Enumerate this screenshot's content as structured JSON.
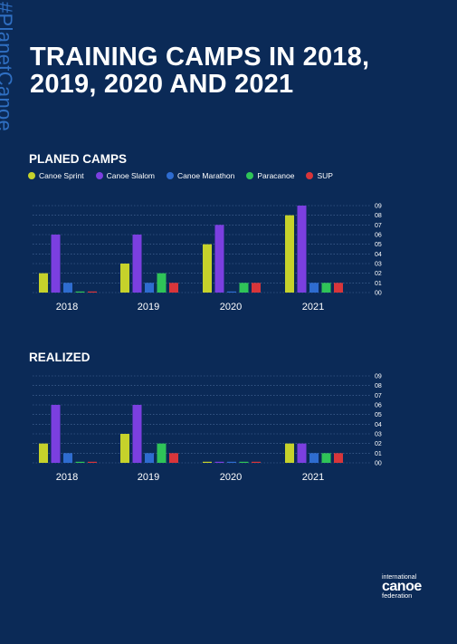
{
  "watermark": "#PlanetCanoe",
  "title": "TRAINING CAMPS IN 2018, 2019, 2020 AND 2021",
  "colors": {
    "background": "#0b2a57",
    "Canoe Sprint": "#c6d22b",
    "Canoe Slalom": "#7b3fe0",
    "Canoe Marathon": "#2e6cd0",
    "Paracanoe": "#2fc458",
    "SUP": "#d8353a"
  },
  "legend": [
    {
      "label": "Canoe Sprint",
      "color": "#c6d22b"
    },
    {
      "label": "Canoe Slalom",
      "color": "#7b3fe0"
    },
    {
      "label": "Canoe Marathon",
      "color": "#2e6cd0"
    },
    {
      "label": "Paracanoe",
      "color": "#2fc458"
    },
    {
      "label": "SUP",
      "color": "#d8353a"
    }
  ],
  "chart_data": [
    {
      "type": "bar",
      "title": "PLANED CAMPS",
      "categories": [
        "2018",
        "2019",
        "2020",
        "2021"
      ],
      "yticks": [
        "00",
        "01",
        "02",
        "03",
        "04",
        "05",
        "06",
        "07",
        "08",
        "09"
      ],
      "ylim": [
        0,
        9
      ],
      "grid": true,
      "series": [
        {
          "name": "Canoe Sprint",
          "values": [
            2,
            3,
            5,
            8
          ]
        },
        {
          "name": "Canoe Slalom",
          "values": [
            6,
            6,
            7,
            9
          ]
        },
        {
          "name": "Canoe Marathon",
          "values": [
            1,
            1,
            0,
            1
          ]
        },
        {
          "name": "Paracanoe",
          "values": [
            0,
            2,
            1,
            1
          ]
        },
        {
          "name": "SUP",
          "values": [
            0,
            1,
            1,
            1
          ]
        }
      ]
    },
    {
      "type": "bar",
      "title": "REALIZED",
      "categories": [
        "2018",
        "2019",
        "2020",
        "2021"
      ],
      "yticks": [
        "00",
        "01",
        "02",
        "03",
        "04",
        "05",
        "06",
        "07",
        "08",
        "09"
      ],
      "ylim": [
        0,
        9
      ],
      "grid": true,
      "series": [
        {
          "name": "Canoe Sprint",
          "values": [
            2,
            3,
            0,
            2
          ]
        },
        {
          "name": "Canoe Slalom",
          "values": [
            6,
            6,
            0,
            2
          ]
        },
        {
          "name": "Canoe Marathon",
          "values": [
            1,
            1,
            0,
            1
          ]
        },
        {
          "name": "Paracanoe",
          "values": [
            0,
            2,
            0,
            1
          ]
        },
        {
          "name": "SUP",
          "values": [
            0,
            1,
            0,
            1
          ]
        }
      ]
    }
  ],
  "logo": {
    "line1": "international",
    "line2": "canoe",
    "line3": "federation"
  }
}
